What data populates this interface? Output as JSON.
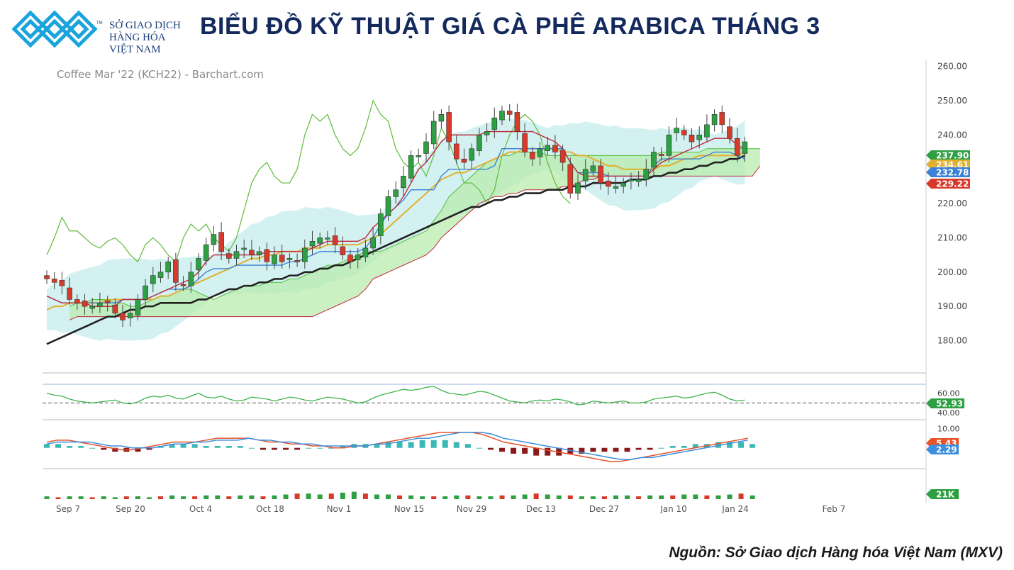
{
  "header": {
    "org_line1": "SỞ GIAO DỊCH",
    "org_line2": "HÀNG HÓA",
    "org_line3": "VIỆT NAM",
    "tm": "TM",
    "title": "BIỂU ĐỒ KỸ THUẬT GIÁ CÀ PHÊ ARABICA THÁNG 3",
    "source": "Nguồn: Sở Giao dịch Hàng hóa Việt Nam (MXV)"
  },
  "colors": {
    "brand": "#1aa3dc",
    "up": "#2ea043",
    "down": "#d83a2a",
    "sma_fast": "#e0b030",
    "sma_slow": "#222222",
    "kijun": "#c0283a",
    "tenkan": "#3b82d6",
    "chikou": "#5dbb3a",
    "band": "#cdeef0",
    "cloud_green": "#b9ebae",
    "cloud_red": "#c0283a"
  },
  "chart_data": {
    "type": "candlestick",
    "title": "Coffee Mar '22 (KCH22) - Barchart.com",
    "price_axis": {
      "ylim": [
        171,
        262
      ],
      "ticks": [
        "260.00",
        "250.00",
        "240.00",
        "230.00",
        "220.00",
        "210.00",
        "200.00",
        "190.00",
        "180.00"
      ]
    },
    "date_labels": [
      "Sep 7",
      "Sep 20",
      "Oct 4",
      "Oct 18",
      "Nov 1",
      "Nov 15",
      "Nov 29",
      "Dec 13",
      "Dec 27",
      "Jan 10",
      "Jan 24",
      "Feb 7"
    ],
    "price_badges": [
      {
        "value": "237.90",
        "color": "#2ea043"
      },
      {
        "value": "234.61",
        "color": "#e0b030"
      },
      {
        "value": "232.78",
        "color": "#3b82d6"
      },
      {
        "value": "229.22",
        "color": "#d83a2a"
      }
    ],
    "closes": [
      198,
      197,
      196,
      192,
      191,
      190,
      190,
      191,
      191,
      188,
      186,
      188,
      192,
      196,
      199,
      200,
      203,
      197,
      196,
      200,
      204,
      208,
      211,
      206,
      204,
      206,
      207,
      205,
      206,
      203,
      205,
      203,
      204,
      203,
      207,
      209,
      210,
      210,
      208,
      205,
      203,
      205,
      207,
      210,
      217,
      222,
      224,
      228,
      234,
      234,
      238,
      244,
      246,
      238,
      233,
      232,
      236,
      240,
      241,
      245,
      247,
      246,
      241,
      235,
      233,
      236,
      237,
      235,
      232,
      223,
      226,
      230,
      231,
      226,
      225,
      225,
      226,
      227,
      227,
      230,
      235,
      234,
      240,
      242,
      240,
      238,
      240,
      243,
      246,
      243,
      239,
      234,
      238
    ],
    "sma_fast": [
      189,
      190,
      190,
      191,
      191,
      191,
      191,
      191,
      192,
      192,
      192,
      192,
      192,
      192,
      192,
      193,
      193,
      194,
      195,
      196,
      197,
      198,
      199,
      200,
      201,
      202,
      203,
      204,
      204,
      205,
      205,
      206,
      206,
      206,
      207,
      207,
      207,
      208,
      208,
      208,
      208,
      208,
      209,
      210,
      211,
      213,
      215,
      217,
      219,
      221,
      223,
      225,
      227,
      228,
      229,
      229,
      230,
      231,
      232,
      233,
      234,
      235,
      235,
      236,
      236,
      236,
      236,
      236,
      235,
      235,
      234,
      234,
      233,
      232,
      231,
      231,
      230,
      230,
      230,
      230,
      230,
      231,
      231,
      232,
      233,
      233,
      234,
      234,
      234,
      234,
      234,
      234,
      235
    ],
    "sma_slow": [
      179,
      180,
      181,
      182,
      183,
      184,
      185,
      186,
      187,
      187,
      188,
      189,
      189,
      190,
      190,
      191,
      191,
      191,
      191,
      191,
      192,
      192,
      193,
      194,
      195,
      195,
      196,
      196,
      197,
      197,
      198,
      198,
      199,
      199,
      200,
      200,
      201,
      201,
      202,
      202,
      203,
      204,
      205,
      206,
      207,
      208,
      209,
      210,
      211,
      212,
      213,
      214,
      215,
      216,
      217,
      218,
      219,
      219,
      220,
      221,
      221,
      222,
      222,
      223,
      223,
      223,
      224,
      224,
      224,
      225,
      225,
      225,
      226,
      226,
      226,
      226,
      226,
      227,
      227,
      227,
      228,
      228,
      229,
      229,
      230,
      230,
      231,
      231,
      232,
      232,
      233,
      233,
      234
    ],
    "tenkan": [
      193,
      192,
      191,
      191,
      191,
      191,
      191,
      191,
      191,
      191,
      192,
      192,
      192,
      192,
      193,
      194,
      195,
      195,
      195,
      196,
      198,
      200,
      201,
      201,
      201,
      202,
      202,
      202,
      202,
      202,
      202,
      202,
      203,
      203,
      204,
      205,
      206,
      206,
      206,
      206,
      206,
      206,
      207,
      210,
      214,
      217,
      219,
      221,
      224,
      224,
      224,
      224,
      228,
      230,
      230,
      230,
      230,
      230,
      230,
      231,
      236,
      236,
      236,
      236,
      236,
      236,
      236,
      236,
      236,
      232,
      229,
      229,
      229,
      229,
      228,
      228,
      228,
      228,
      228,
      228,
      231,
      233,
      233,
      233,
      233,
      233,
      233,
      234,
      235,
      235,
      235,
      234,
      233
    ],
    "kijun": [
      193,
      192,
      191,
      191,
      191,
      191,
      190,
      190,
      190,
      190,
      192,
      192,
      192,
      192,
      193,
      194,
      195,
      196,
      197,
      198,
      200,
      203,
      205,
      205,
      205,
      205,
      205,
      205,
      205,
      206,
      206,
      206,
      206,
      206,
      206,
      207,
      208,
      209,
      209,
      209,
      209,
      209,
      210,
      213,
      215,
      217,
      219,
      222,
      226,
      230,
      232,
      235,
      238,
      240,
      240,
      240,
      240,
      240,
      241,
      241,
      241,
      241,
      241,
      241,
      241,
      240,
      239,
      238,
      236,
      232,
      229,
      228,
      228,
      228,
      228,
      228,
      228,
      228,
      228,
      228,
      230,
      232,
      233,
      234,
      235,
      236,
      237,
      238,
      239,
      239,
      239,
      237,
      236
    ],
    "chikou": [
      205,
      210,
      216,
      212,
      212,
      210,
      208,
      207,
      209,
      210,
      208,
      205,
      203,
      208,
      210,
      208,
      205,
      203,
      210,
      214,
      212,
      214,
      210,
      208,
      206,
      210,
      218,
      226,
      230,
      232,
      228,
      226,
      226,
      230,
      240,
      246,
      244,
      246,
      240,
      236,
      234,
      236,
      242,
      250,
      246,
      244,
      236,
      232,
      230,
      232,
      228,
      234,
      242,
      238,
      232,
      226,
      226,
      224,
      220,
      224,
      234,
      240,
      244,
      246,
      244,
      240,
      232,
      226,
      222,
      220
    ],
    "cloud_a": [
      190,
      191,
      191,
      192,
      192,
      192,
      191,
      191,
      190,
      190,
      191,
      192,
      193,
      193,
      194,
      195,
      195,
      194,
      193,
      192,
      193,
      194,
      195,
      196,
      196,
      196,
      197,
      197,
      197,
      198,
      198,
      199,
      200,
      201,
      202,
      202,
      203,
      204,
      205,
      206,
      206,
      206,
      207,
      208,
      209,
      210,
      211,
      212,
      215,
      218,
      222,
      224,
      226,
      228,
      230,
      232,
      233,
      234,
      234,
      235,
      235,
      235,
      235,
      234,
      234,
      234,
      234,
      234,
      234,
      234,
      234,
      234,
      234,
      234,
      234,
      234,
      234,
      234,
      235,
      235,
      235,
      235,
      235,
      235,
      236,
      236,
      236,
      236,
      236,
      236,
      236,
      236
    ],
    "cloud_b": [
      186,
      187,
      187,
      187,
      187,
      187,
      187,
      187,
      187,
      187,
      187,
      187,
      187,
      187,
      187,
      187,
      187,
      187,
      187,
      187,
      187,
      187,
      187,
      187,
      187,
      187,
      187,
      187,
      187,
      187,
      187,
      187,
      187,
      188,
      189,
      190,
      191,
      192,
      193,
      195,
      198,
      199,
      200,
      201,
      202,
      203,
      204,
      205,
      207,
      210,
      212,
      214,
      216,
      218,
      220,
      221,
      222,
      222,
      223,
      223,
      224,
      224,
      224,
      224,
      224,
      225,
      225,
      226,
      227,
      227,
      228,
      228,
      228,
      228,
      228,
      228,
      228,
      228,
      228,
      228,
      228,
      228,
      228,
      228,
      228,
      228,
      228,
      228,
      228,
      228,
      228,
      231
    ],
    "rsi": {
      "ylim": [
        35,
        75
      ],
      "ticks": [
        "60.00",
        "40.00"
      ],
      "reference": 50,
      "badge": "52.93",
      "values": [
        60,
        58,
        57,
        54,
        52,
        51,
        50,
        51,
        52,
        53,
        50,
        49,
        51,
        55,
        57,
        56,
        58,
        55,
        54,
        57,
        60,
        56,
        55,
        57,
        54,
        52,
        53,
        56,
        55,
        54,
        52,
        54,
        56,
        55,
        53,
        52,
        54,
        56,
        55,
        54,
        52,
        50,
        51,
        55,
        58,
        60,
        62,
        64,
        63,
        64,
        66,
        67,
        63,
        60,
        59,
        58,
        60,
        62,
        61,
        58,
        55,
        52,
        51,
        50,
        52,
        53,
        52,
        54,
        53,
        51,
        48,
        49,
        52,
        51,
        50,
        51,
        52,
        50,
        50,
        51,
        54,
        55,
        56,
        57,
        55,
        56,
        58,
        60,
        61,
        58,
        54,
        52,
        53
      ]
    },
    "macd": {
      "ylim": [
        -10,
        12
      ],
      "ticks": [
        "10.00"
      ],
      "badge": "2.29",
      "badge2": "5.43",
      "macd_line": [
        3,
        4,
        4,
        3,
        2,
        1,
        0,
        -1,
        -1,
        0,
        1,
        2,
        3,
        3,
        3,
        4,
        5,
        5,
        5,
        5,
        4,
        3,
        3,
        2,
        2,
        1,
        1,
        0,
        0,
        1,
        1,
        2,
        3,
        4,
        5,
        6,
        7,
        8,
        8,
        8,
        8,
        7,
        5,
        3,
        2,
        1,
        0,
        -1,
        -2,
        -3,
        -4,
        -5,
        -6,
        -7,
        -7,
        -6,
        -5,
        -4,
        -3,
        -2,
        -1,
        0,
        1,
        2,
        3,
        4,
        5
      ],
      "signal_line": [
        2,
        3,
        3,
        3,
        3,
        2,
        1,
        1,
        0,
        0,
        0,
        1,
        2,
        2,
        3,
        3,
        4,
        4,
        4,
        5,
        4,
        4,
        3,
        3,
        2,
        2,
        1,
        1,
        1,
        1,
        1,
        2,
        2,
        3,
        4,
        5,
        5,
        6,
        7,
        8,
        8,
        8,
        7,
        5,
        4,
        3,
        2,
        1,
        0,
        -1,
        -2,
        -3,
        -4,
        -5,
        -6,
        -6,
        -5,
        -5,
        -4,
        -3,
        -2,
        -1,
        0,
        1,
        2,
        3,
        4
      ],
      "histogram": [
        2,
        2,
        1,
        1,
        0,
        -1,
        -2,
        -2,
        -2,
        -1,
        1,
        2,
        2,
        2,
        1,
        1,
        1,
        1,
        0,
        -1,
        -1,
        -1,
        -1,
        0,
        0,
        0,
        1,
        2,
        2,
        2,
        3,
        3,
        3,
        4,
        4,
        4,
        3,
        2,
        0,
        -1,
        -2,
        -3,
        -3,
        -4,
        -4,
        -4,
        -3,
        -3,
        -2,
        -2,
        -2,
        -2,
        -1,
        -1,
        0,
        1,
        1,
        2,
        2,
        3,
        3,
        3,
        2
      ]
    },
    "volume": {
      "badge": "21K",
      "values": [
        3,
        2,
        3,
        3,
        2,
        3,
        2,
        3,
        3,
        2,
        3,
        4,
        3,
        3,
        4,
        4,
        3,
        4,
        4,
        3,
        4,
        5,
        6,
        6,
        5,
        6,
        7,
        8,
        6,
        5,
        5,
        4,
        4,
        3,
        3,
        3,
        4,
        4,
        3,
        3,
        4,
        4,
        5,
        6,
        5,
        4,
        4,
        3,
        3,
        3,
        4,
        4,
        3,
        4,
        4,
        4,
        5,
        5,
        4,
        4,
        5,
        6,
        4
      ]
    }
  }
}
